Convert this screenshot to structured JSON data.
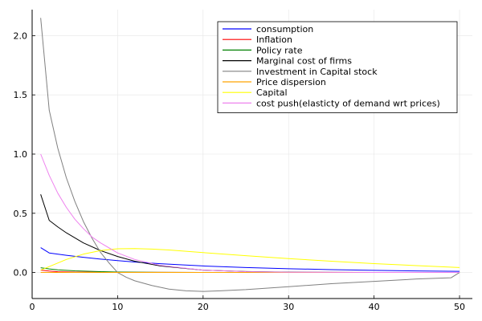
{
  "chart_data": {
    "type": "line",
    "title": "",
    "xlabel": "",
    "ylabel": "",
    "xlim": [
      0,
      51.5
    ],
    "ylim": [
      -0.22,
      2.22
    ],
    "x_ticks": [
      0,
      10,
      20,
      30,
      40,
      50
    ],
    "x_tick_labels": [
      "0",
      "10",
      "20",
      "30",
      "40",
      "50"
    ],
    "y_ticks": [
      0,
      0.5,
      1.0,
      1.5,
      2.0
    ],
    "y_tick_labels": [
      "0.0",
      "0.5",
      "1.0",
      "1.5",
      "2.0"
    ],
    "grid": true,
    "legend_position": "top-right",
    "series": [
      {
        "name": "consumption",
        "color": "#0000ff",
        "x": [
          1,
          2,
          4,
          6,
          8,
          10,
          12,
          15,
          20,
          25,
          30,
          35,
          40,
          45,
          50
        ],
        "y": [
          0.21,
          0.165,
          0.145,
          0.128,
          0.113,
          0.1,
          0.088,
          0.074,
          0.055,
          0.042,
          0.032,
          0.024,
          0.018,
          0.013,
          0.01
        ]
      },
      {
        "name": "Inflation",
        "color": "#ff0000",
        "x": [
          1,
          2,
          3,
          5,
          8,
          10,
          15,
          20,
          30,
          40,
          50
        ],
        "y": [
          0.02,
          0.012,
          0.006,
          0.003,
          0.002,
          0.001,
          0.001,
          0.0,
          0.0,
          0.0,
          0.0
        ]
      },
      {
        "name": "Policy rate",
        "color": "#008000",
        "x": [
          1,
          2,
          3,
          5,
          8,
          10,
          15,
          20,
          30,
          40,
          50
        ],
        "y": [
          0.04,
          0.03,
          0.022,
          0.014,
          0.007,
          0.004,
          0.001,
          0.0,
          0.0,
          0.0,
          0.0
        ]
      },
      {
        "name": "Marginal cost of firms",
        "color": "#000000",
        "x": [
          1,
          2,
          3,
          4,
          6,
          8,
          10,
          12,
          15,
          20,
          25,
          30,
          40,
          50
        ],
        "y": [
          0.66,
          0.44,
          0.385,
          0.335,
          0.25,
          0.185,
          0.135,
          0.095,
          0.055,
          0.02,
          0.008,
          0.003,
          0.0,
          0.0
        ]
      },
      {
        "name": "Investment in Capital stock",
        "color": "#808080",
        "x": [
          1,
          2,
          3,
          4,
          5,
          6,
          7,
          8,
          9,
          10,
          11,
          12,
          14,
          16,
          18,
          20,
          22,
          25,
          30,
          35,
          40,
          45,
          49,
          50
        ],
        "y": [
          2.15,
          1.37,
          1.05,
          0.8,
          0.6,
          0.43,
          0.29,
          0.17,
          0.08,
          0.0,
          -0.04,
          -0.07,
          -0.11,
          -0.14,
          -0.155,
          -0.16,
          -0.155,
          -0.145,
          -0.12,
          -0.095,
          -0.075,
          -0.055,
          -0.045,
          0.0
        ]
      },
      {
        "name": "Price dispersion",
        "color": "#ffa500",
        "x": [
          1,
          5,
          10,
          20,
          30,
          40,
          50
        ],
        "y": [
          0.0,
          0.0,
          0.0,
          0.0,
          0.0,
          0.0,
          0.0
        ]
      },
      {
        "name": "Capital",
        "color": "#ffff00",
        "x": [
          1,
          2,
          4,
          6,
          8,
          10,
          12,
          14,
          16,
          20,
          25,
          30,
          35,
          40,
          45,
          50
        ],
        "y": [
          0.02,
          0.05,
          0.11,
          0.155,
          0.185,
          0.2,
          0.202,
          0.198,
          0.19,
          0.168,
          0.142,
          0.117,
          0.095,
          0.075,
          0.058,
          0.042
        ]
      },
      {
        "name": "cost push(elasticty of demand wrt prices)",
        "color": "#ee82ee",
        "x": [
          1,
          2,
          3,
          4,
          5,
          6,
          7,
          8,
          10,
          12,
          15,
          20,
          25,
          30,
          40,
          50
        ],
        "y": [
          1.0,
          0.82,
          0.67,
          0.55,
          0.45,
          0.37,
          0.3,
          0.25,
          0.165,
          0.11,
          0.06,
          0.02,
          0.007,
          0.002,
          0.0,
          0.0
        ]
      }
    ]
  }
}
